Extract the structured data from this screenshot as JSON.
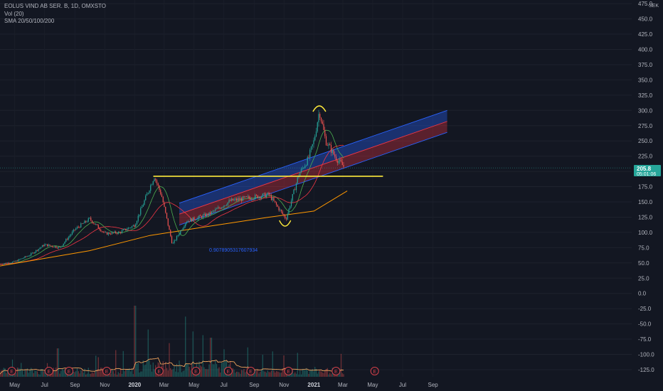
{
  "legend": {
    "symbol": "EOLUS VIND AB SER. B, 1D, OMXSTO",
    "volume": "Vol (20)",
    "sma": "SMA 20/50/100/200"
  },
  "currency": "SEK",
  "price_label": {
    "price": "205.8",
    "countdown": "05:01:06"
  },
  "fib_label": "0.9078905317607934",
  "colors": {
    "background": "#131722",
    "candle_up": "#26a69a",
    "candle_down": "#ef5350",
    "price_badge": "#26a69a",
    "channel_upper": "#2962ff",
    "channel_lower": "#f23645",
    "support_line": "#ffeb3b",
    "sma_fast": "#4caf50",
    "sma_mid": "#f23645",
    "sma_slow": "#ff9800",
    "earnings_marker": "#d6404a"
  },
  "chart_data": {
    "type": "candlestick",
    "y_ticks": [
      "475.0",
      "450.0",
      "425.0",
      "400.0",
      "375.0",
      "350.0",
      "325.0",
      "300.0",
      "275.0",
      "250.0",
      "225.0",
      "200.0",
      "175.0",
      "150.0",
      "125.0",
      "100.0",
      "75.0",
      "50.0",
      "25.0",
      "0.0",
      "-25.0",
      "-50.0",
      "-75.0",
      "-100.0",
      "-125.0"
    ],
    "x_ticks": [
      "May",
      "Jul",
      "Sep",
      "Nov",
      "2020",
      "Mar",
      "May",
      "Jul",
      "Sep",
      "Nov",
      "2021",
      "Mar",
      "May",
      "Jul",
      "Sep"
    ],
    "ylim": [
      -140,
      480
    ],
    "price_path": [
      {
        "date": "2019-04-01",
        "price": 48
      },
      {
        "date": "2019-05-01",
        "price": 52
      },
      {
        "date": "2019-06-01",
        "price": 63
      },
      {
        "date": "2019-07-01",
        "price": 80
      },
      {
        "date": "2019-08-01",
        "price": 75
      },
      {
        "date": "2019-09-01",
        "price": 105
      },
      {
        "date": "2019-10-01",
        "price": 122
      },
      {
        "date": "2019-11-01",
        "price": 98
      },
      {
        "date": "2019-12-01",
        "price": 100
      },
      {
        "date": "2020-01-01",
        "price": 112
      },
      {
        "date": "2020-01-20",
        "price": 150
      },
      {
        "date": "2020-02-10",
        "price": 192
      },
      {
        "date": "2020-02-25",
        "price": 160
      },
      {
        "date": "2020-03-18",
        "price": 80
      },
      {
        "date": "2020-04-15",
        "price": 118
      },
      {
        "date": "2020-06-01",
        "price": 130
      },
      {
        "date": "2020-07-15",
        "price": 152
      },
      {
        "date": "2020-09-01",
        "price": 158
      },
      {
        "date": "2020-10-01",
        "price": 162
      },
      {
        "date": "2020-11-05",
        "price": 122
      },
      {
        "date": "2020-12-01",
        "price": 195
      },
      {
        "date": "2020-12-20",
        "price": 220
      },
      {
        "date": "2021-01-01",
        "price": 250
      },
      {
        "date": "2021-01-12",
        "price": 300
      },
      {
        "date": "2021-01-25",
        "price": 250
      },
      {
        "date": "2021-02-15",
        "price": 222
      },
      {
        "date": "2021-03-05",
        "price": 205.8
      }
    ],
    "support_level": 192,
    "channel": {
      "start_date": "2020-04-01",
      "end_date": "2021-09-30",
      "upper_start": 148,
      "upper_end": 300,
      "mid_start": 130,
      "mid_end": 282,
      "lower_start": 112,
      "lower_end": 264
    },
    "sma200_path": [
      {
        "date": "2019-04-01",
        "price": 45
      },
      {
        "date": "2019-10-01",
        "price": 70
      },
      {
        "date": "2020-02-01",
        "price": 95
      },
      {
        "date": "2020-06-01",
        "price": 110
      },
      {
        "date": "2020-10-01",
        "price": 125
      },
      {
        "date": "2021-01-01",
        "price": 135
      },
      {
        "date": "2021-03-10",
        "price": 168
      }
    ],
    "earnings_dates": [
      "2019-04-25",
      "2019-07-10",
      "2019-08-20",
      "2019-11-05",
      "2020-02-20",
      "2020-05-05",
      "2020-07-10",
      "2020-08-25",
      "2020-11-10",
      "2021-02-15",
      "2021-05-05"
    ]
  }
}
